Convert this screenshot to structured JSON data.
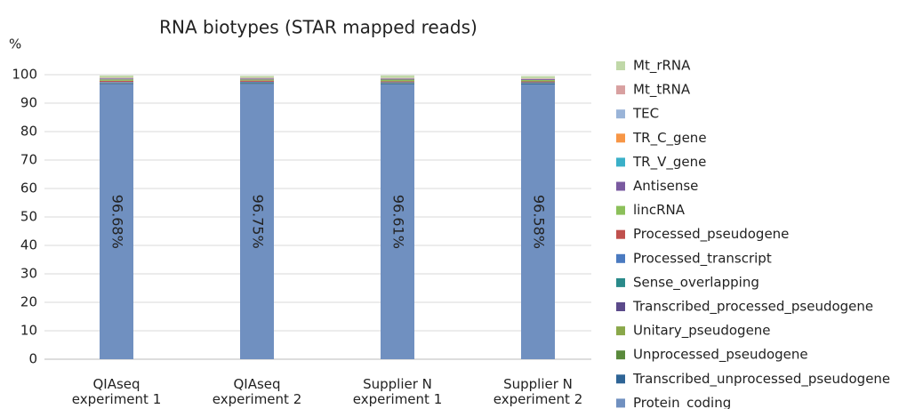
{
  "chart_data": {
    "type": "stacked_bar",
    "title": "RNA biotypes (STAR mapped reads)",
    "y_label": "%",
    "categories": [
      "QIAseq experiment 1",
      "QIAseq experiment 2",
      "Supplier N experiment 1",
      "Supplier N experiment 2"
    ],
    "ylim": [
      0,
      100
    ],
    "yticks": [
      0,
      10,
      20,
      30,
      40,
      50,
      60,
      70,
      80,
      90,
      100
    ],
    "grid": true,
    "legend": "right",
    "series": [
      {
        "name": "Protein_coding",
        "color": "#7090c0",
        "values": [
          96.68,
          96.75,
          96.61,
          96.58
        ],
        "value_labels": [
          "96.68%",
          "96.75%",
          "96.61%",
          "96.58%"
        ]
      },
      {
        "name": "Transcribed_unprocessed_pseudogene",
        "color": "#2e6496",
        "values": [
          0.3,
          0.3,
          0.3,
          0.3
        ]
      },
      {
        "name": "Unprocessed_pseudogene",
        "color": "#5a8a3c",
        "values": [
          0.1,
          0.1,
          0.1,
          0.1
        ]
      },
      {
        "name": "Unitary_pseudogene",
        "color": "#8aa84a",
        "values": [
          0.02,
          0.02,
          0.02,
          0.02
        ]
      },
      {
        "name": "Transcribed_processed_pseudogene",
        "color": "#5b4a8a",
        "values": [
          0.1,
          0.1,
          0.1,
          0.1
        ]
      },
      {
        "name": "Sense_overlapping",
        "color": "#2a8a8a",
        "values": [
          0.05,
          0.05,
          0.05,
          0.05
        ]
      },
      {
        "name": "Processed_transcript",
        "color": "#4a7ac0",
        "values": [
          0.2,
          0.2,
          0.2,
          0.2
        ]
      },
      {
        "name": "Processed_pseudogene",
        "color": "#c0504d",
        "values": [
          0.4,
          0.4,
          0.3,
          0.3
        ]
      },
      {
        "name": "lincRNA",
        "color": "#8cc05a",
        "values": [
          0.5,
          0.4,
          0.6,
          0.5
        ]
      },
      {
        "name": "Antisense",
        "color": "#7a5aa0",
        "values": [
          0.3,
          0.3,
          0.3,
          0.3
        ]
      },
      {
        "name": "TR_V_gene",
        "color": "#3ab0c8",
        "values": [
          0.01,
          0.01,
          0.01,
          0.01
        ]
      },
      {
        "name": "TR_C_gene",
        "color": "#f79646",
        "values": [
          0.01,
          0.01,
          0.01,
          0.01
        ]
      },
      {
        "name": "TEC",
        "color": "#9ab4d8",
        "values": [
          0.05,
          0.05,
          0.05,
          0.05
        ]
      },
      {
        "name": "Mt_tRNA",
        "color": "#d8a0a0",
        "values": [
          0.2,
          0.2,
          0.2,
          0.2
        ]
      },
      {
        "name": "Mt_rRNA",
        "color": "#c0d8a8",
        "values": [
          0.8,
          0.7,
          0.9,
          0.8
        ]
      }
    ]
  }
}
